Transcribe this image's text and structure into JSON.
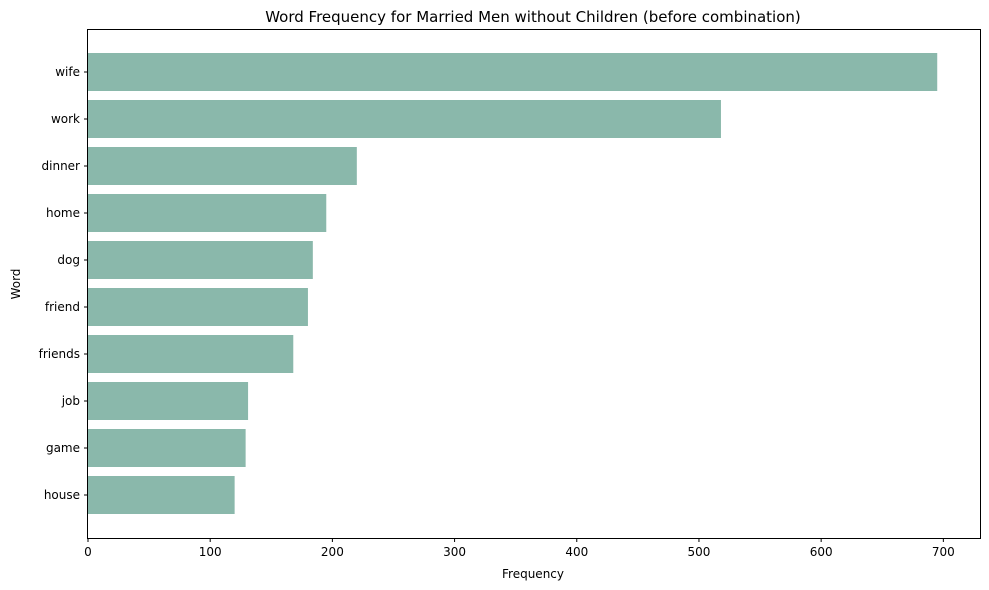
{
  "chart_data": {
    "type": "bar",
    "orientation": "horizontal",
    "title": "Word Frequency for Married Men without Children (before combination)",
    "xlabel": "Frequency",
    "ylabel": "Word",
    "categories": [
      "wife",
      "work",
      "dinner",
      "home",
      "dog",
      "friend",
      "friends",
      "job",
      "game",
      "house"
    ],
    "values": [
      695,
      518,
      220,
      195,
      184,
      180,
      168,
      131,
      129,
      120
    ],
    "xlim": [
      0,
      730
    ],
    "xticks": [
      0,
      100,
      200,
      300,
      400,
      500,
      600,
      700
    ],
    "grid": false,
    "bar_color": "#8ab8ab"
  }
}
